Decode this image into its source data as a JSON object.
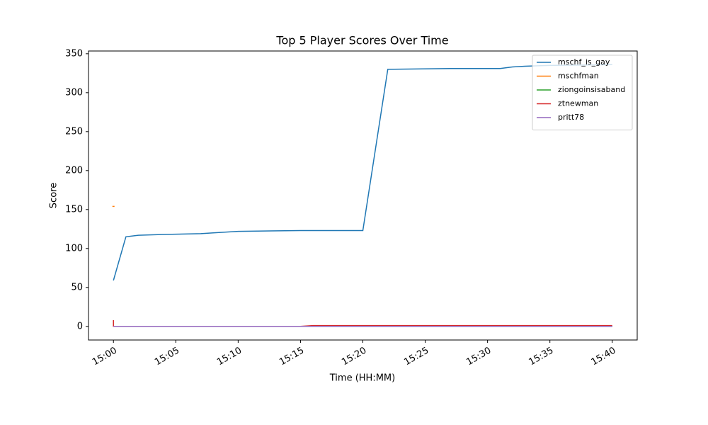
{
  "chart_data": {
    "type": "line",
    "title": "Top 5 Player Scores Over Time",
    "x_label": "Time (HH:MM)",
    "y_label": "Score",
    "xlim": [
      "14:58",
      "15:42"
    ],
    "xticks": [
      "15:00",
      "15:05",
      "15:10",
      "15:15",
      "15:20",
      "15:25",
      "15:30",
      "15:35",
      "15:40"
    ],
    "ylim": [
      -17.5,
      353.5
    ],
    "yticks": [
      0,
      50,
      100,
      150,
      200,
      250,
      300,
      350
    ],
    "legend": "upper right",
    "series": [
      {
        "name": "mschf_is_gay",
        "color": "#1f77b4",
        "x": [
          "15:00",
          "15:01",
          "15:02",
          "15:04",
          "15:07",
          "15:08",
          "15:10",
          "15:15",
          "15:20",
          "15:22",
          "15:27",
          "15:31",
          "15:32",
          "15:33",
          "15:35",
          "15:40"
        ],
        "values": [
          59,
          115,
          117,
          118,
          119,
          120,
          122,
          123,
          123,
          330,
          331,
          331,
          333,
          334,
          335,
          336
        ]
      },
      {
        "name": "mschfman",
        "color": "#ff7f0e",
        "x": [
          "15:00",
          "15:00"
        ],
        "values": [
          154,
          154
        ]
      },
      {
        "name": "ziongoinsisaband",
        "color": "#2ca02c",
        "x": [
          "15:00",
          "15:40"
        ],
        "values": [
          0,
          0
        ]
      },
      {
        "name": "ztnewman",
        "color": "#d62728",
        "x": [
          "15:00",
          "15:00",
          "15:15",
          "15:16",
          "15:40"
        ],
        "values": [
          8,
          0,
          0,
          1,
          1
        ]
      },
      {
        "name": "pritt78",
        "color": "#9467bd",
        "x": [
          "15:00",
          "15:40"
        ],
        "values": [
          0,
          0
        ]
      }
    ]
  }
}
